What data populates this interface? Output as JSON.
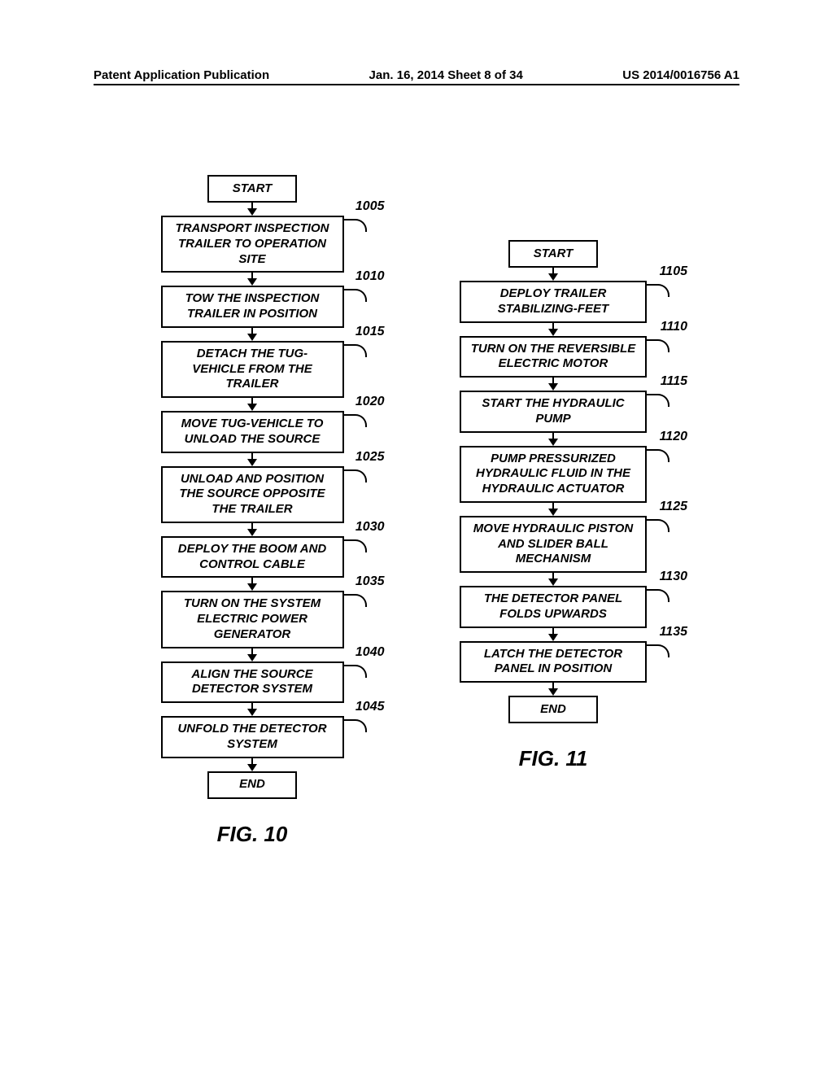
{
  "header": {
    "left": "Patent Application Publication",
    "center": "Jan. 16, 2014   Sheet 8 of 34",
    "right": "US 2014/0016756 A1"
  },
  "flow10": {
    "start": "START",
    "steps": [
      {
        "ref": "1005",
        "text": "TRANSPORT INSPECTION TRAILER TO OPERATION SITE"
      },
      {
        "ref": "1010",
        "text": "TOW THE INSPECTION TRAILER IN POSITION"
      },
      {
        "ref": "1015",
        "text": "DETACH THE TUG-VEHICLE FROM THE TRAILER"
      },
      {
        "ref": "1020",
        "text": "MOVE TUG-VEHICLE TO UNLOAD THE SOURCE"
      },
      {
        "ref": "1025",
        "text": "UNLOAD AND POSITION THE SOURCE OPPOSITE THE TRAILER"
      },
      {
        "ref": "1030",
        "text": "DEPLOY THE BOOM AND CONTROL CABLE"
      },
      {
        "ref": "1035",
        "text": "TURN ON THE SYSTEM ELECTRIC POWER GENERATOR"
      },
      {
        "ref": "1040",
        "text": "ALIGN THE SOURCE DETECTOR SYSTEM"
      },
      {
        "ref": "1045",
        "text": "UNFOLD THE DETECTOR SYSTEM"
      }
    ],
    "end": "END",
    "figure": "FIG. 10"
  },
  "flow11": {
    "start": "START",
    "steps": [
      {
        "ref": "1105",
        "text": "DEPLOY TRAILER STABILIZING-FEET"
      },
      {
        "ref": "1110",
        "text": "TURN ON THE REVERSIBLE ELECTRIC MOTOR"
      },
      {
        "ref": "1115",
        "text": "START THE HYDRAULIC PUMP"
      },
      {
        "ref": "1120",
        "text": "PUMP PRESSURIZED HYDRAULIC FLUID IN THE HYDRAULIC ACTUATOR"
      },
      {
        "ref": "1125",
        "text": "MOVE HYDRAULIC PISTON AND SLIDER BALL MECHANISM"
      },
      {
        "ref": "1130",
        "text": "THE DETECTOR PANEL FOLDS UPWARDS"
      },
      {
        "ref": "1135",
        "text": "LATCH THE DETECTOR PANEL IN POSITION"
      }
    ],
    "end": "END",
    "figure": "FIG. 11"
  },
  "style": {
    "border_color": "#000000",
    "background_color": "#ffffff",
    "text_color": "#000000",
    "box_border_width": 2.5,
    "font_style": "italic",
    "font_weight": "bold",
    "step_fontsize": 15,
    "ref_fontsize": 16,
    "fig_fontsize": 26,
    "box_width_a": 225,
    "box_width_b": 230,
    "terminal_box_width": 110,
    "arrow_gap": 16
  }
}
